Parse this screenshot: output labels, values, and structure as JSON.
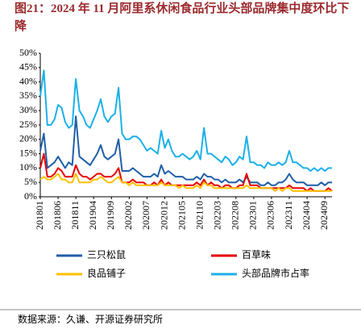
{
  "chart_data": {
    "type": "line",
    "title": "图21：2024 年 11 月阿里系休闲食品行业头部品牌集中度环比下降",
    "source": "数据来源：久谦、开源证券研究所",
    "categories": [
      "201801",
      null,
      null,
      null,
      null,
      "201806",
      null,
      null,
      null,
      null,
      "201811",
      null,
      null,
      null,
      null,
      "201904",
      null,
      null,
      null,
      null,
      "201909",
      null,
      null,
      null,
      null,
      "202002",
      null,
      null,
      null,
      null,
      "202007",
      null,
      null,
      null,
      null,
      "202012",
      null,
      null,
      null,
      null,
      "202105",
      null,
      null,
      null,
      null,
      "202110",
      null,
      null,
      null,
      null,
      "202203",
      null,
      null,
      null,
      null,
      "202208",
      null,
      null,
      null,
      null,
      "202301",
      null,
      null,
      null,
      null,
      "202306",
      null,
      null,
      null,
      null,
      "202311",
      null,
      null,
      null,
      null,
      "202404",
      null,
      null,
      null,
      null,
      "202409",
      null,
      null
    ],
    "series": [
      {
        "name": "三只松鼠",
        "color": "#1f5fa8",
        "values": [
          16,
          22,
          10,
          11,
          12,
          14,
          12,
          10,
          12,
          11,
          28,
          14,
          13,
          12,
          11,
          13,
          15,
          18,
          14,
          13,
          14,
          15,
          20,
          9,
          9,
          9,
          10,
          9,
          8,
          7,
          7,
          7,
          8,
          7,
          11,
          8,
          9,
          8,
          7,
          7,
          7,
          6,
          6,
          6,
          7,
          6,
          8,
          7,
          7,
          6,
          6,
          5,
          6,
          5,
          5,
          5,
          6,
          5,
          7,
          5,
          5,
          5,
          4,
          4,
          5,
          4,
          4,
          5,
          5,
          6,
          8,
          6,
          5,
          5,
          5,
          4,
          4,
          4,
          4,
          5,
          4,
          5,
          5
        ]
      },
      {
        "name": "百草味",
        "color": "#e60000",
        "values": [
          10,
          15,
          7,
          7,
          8,
          10,
          9,
          7,
          7,
          7,
          11,
          8,
          7,
          7,
          6,
          7,
          8,
          8,
          7,
          7,
          7,
          8,
          10,
          5,
          5,
          5,
          6,
          5,
          5,
          5,
          4,
          4,
          5,
          4,
          6,
          4,
          5,
          4,
          4,
          4,
          4,
          4,
          4,
          4,
          5,
          4,
          6,
          4,
          5,
          4,
          4,
          3,
          4,
          4,
          3,
          3,
          4,
          4,
          8,
          4,
          4,
          4,
          3,
          3,
          3,
          3,
          3,
          3,
          3,
          3,
          4,
          3,
          3,
          3,
          3,
          2,
          3,
          2,
          2,
          2,
          2,
          3,
          2
        ]
      },
      {
        "name": "良品铺子",
        "color": "#ffc000",
        "values": [
          6,
          7,
          6,
          6,
          7,
          8,
          6,
          6,
          5,
          5,
          8,
          5,
          5,
          5,
          5,
          6,
          6,
          7,
          6,
          5,
          5,
          6,
          7,
          5,
          5,
          4,
          5,
          4,
          4,
          4,
          4,
          4,
          4,
          4,
          5,
          4,
          4,
          4,
          4,
          3,
          4,
          3,
          3,
          3,
          4,
          3,
          5,
          4,
          4,
          3,
          3,
          3,
          3,
          3,
          3,
          3,
          3,
          3,
          4,
          3,
          3,
          3,
          3,
          3,
          3,
          3,
          2,
          3,
          2,
          3,
          3,
          2,
          2,
          2,
          2,
          2,
          2,
          2,
          2,
          2,
          2,
          2,
          2
        ]
      },
      {
        "name": "头部品牌市占率",
        "color": "#1cb0e8",
        "values": [
          35,
          44,
          25,
          25,
          27,
          32,
          31,
          26,
          24,
          25,
          41,
          30,
          28,
          25,
          24,
          27,
          30,
          34,
          28,
          26,
          28,
          29,
          38,
          22,
          20,
          20,
          21,
          21,
          20,
          18,
          16,
          17,
          16,
          15,
          23,
          17,
          20,
          16,
          14,
          14,
          15,
          14,
          13,
          14,
          16,
          13,
          24,
          15,
          15,
          14,
          13,
          12,
          14,
          13,
          11,
          12,
          14,
          13,
          21,
          12,
          12,
          11,
          11,
          10,
          12,
          11,
          11,
          12,
          11,
          12,
          16,
          12,
          12,
          11,
          10,
          10,
          9,
          10,
          9,
          10,
          9,
          10,
          10
        ]
      }
    ],
    "ylim": [
      0,
      50
    ],
    "yticks": [
      {
        "value": 0,
        "label": "0%"
      },
      {
        "value": 5,
        "label": "5%"
      },
      {
        "value": 10,
        "label": "10%"
      },
      {
        "value": 15,
        "label": "15%"
      },
      {
        "value": 20,
        "label": "20%"
      },
      {
        "value": 25,
        "label": "25%"
      },
      {
        "value": 30,
        "label": "30%"
      },
      {
        "value": 35,
        "label": "35%"
      },
      {
        "value": 40,
        "label": "40%"
      },
      {
        "value": 45,
        "label": "45%"
      },
      {
        "value": 50,
        "label": "50%"
      }
    ],
    "grid": false
  }
}
